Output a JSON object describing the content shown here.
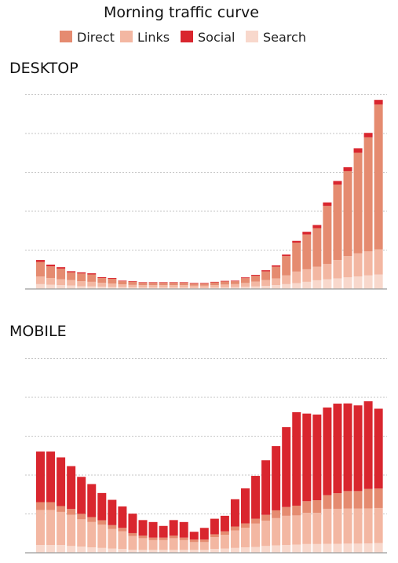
{
  "chart_data": {
    "type": "bar",
    "stacked": true,
    "title": "Morning traffic curve",
    "legend": {
      "position": "top-center",
      "entries": [
        "Direct",
        "Links",
        "Social",
        "Search"
      ]
    },
    "colors": {
      "Direct": "#e58b70",
      "Links": "#f3b7a2",
      "Social": "#d9262e",
      "Search": "#f8d8cc",
      "grid": "#b4b4b4",
      "baseline": "#9a9a9a"
    },
    "grid": true,
    "yaxis_labels": false,
    "xaxis_labels": false,
    "ylim": [
      0,
      100
    ],
    "stack_order": [
      "Search",
      "Links",
      "Direct",
      "Social"
    ],
    "panels": [
      {
        "title": "DESKTOP",
        "series": [
          {
            "name": "Search",
            "values": [
              2.5,
              2.2,
              2,
              1.8,
              1.4,
              1.3,
              1.2,
              1,
              0.9,
              0.8,
              0.7,
              0.7,
              0.7,
              0.7,
              0.7,
              0.6,
              0.6,
              0.7,
              0.8,
              0.9,
              1.1,
              1.3,
              1.6,
              2,
              2.5,
              3,
              3.7,
              4.5,
              5,
              5.5,
              6,
              6.5,
              7,
              7.5
            ]
          },
          {
            "name": "Links",
            "values": [
              4,
              3.5,
              3,
              2.8,
              2.6,
              2.4,
              2,
              1.8,
              1.5,
              1.3,
              1.3,
              1.3,
              1.3,
              1.3,
              1.3,
              1.1,
              1.1,
              1.3,
              1.5,
              1.6,
              2,
              2.5,
              3,
              3.5,
              4.5,
              6,
              6.5,
              7,
              8,
              9.5,
              11,
              12,
              12.5,
              13
            ]
          },
          {
            "name": "Direct",
            "values": [
              7.5,
              6,
              5.5,
              4,
              4,
              3.8,
              2.5,
              2.5,
              1.6,
              1.7,
              1.2,
              1.2,
              1.2,
              1.2,
              1.2,
              1.1,
              1.1,
              1.4,
              1.6,
              1.5,
              2.5,
              3,
              4.5,
              6,
              10,
              15,
              18,
              20,
              30,
              39,
              44,
              52,
              59,
              75
            ]
          },
          {
            "name": "Social",
            "values": [
              1,
              0.9,
              0.8,
              0.6,
              0.6,
              0.6,
              0.4,
              0.4,
              0.3,
              0.3,
              0.3,
              0.3,
              0.3,
              0.3,
              0.3,
              0.3,
              0.3,
              0.3,
              0.3,
              0.3,
              0.4,
              0.5,
              0.6,
              0.7,
              0.8,
              0.9,
              1.4,
              1.6,
              1.8,
              1.9,
              2,
              2.3,
              2.3,
              2.4
            ]
          }
        ]
      },
      {
        "title": "MOBILE",
        "series": [
          {
            "name": "Search",
            "values": [
              4,
              4,
              4,
              3.5,
              3.2,
              2.8,
              2.5,
              2.2,
              2,
              1.6,
              1.5,
              1.5,
              1.5,
              1.5,
              1.5,
              1.5,
              1.5,
              2,
              2.2,
              2.5,
              2.8,
              3,
              3.5,
              3.8,
              4,
              4.2,
              4.5,
              4.5,
              4.6,
              4.6,
              4.7,
              4.7,
              4.8,
              5
            ]
          },
          {
            "name": "Links",
            "values": [
              18,
              18,
              17,
              16,
              14,
              13,
              12,
              10,
              9,
              7,
              6,
              5,
              5,
              6,
              5,
              4,
              4,
              6,
              7,
              9,
              10,
              12,
              13,
              14,
              15,
              15,
              16,
              16,
              18,
              18,
              18,
              18,
              18,
              18
            ]
          },
          {
            "name": "Direct",
            "values": [
              4,
              4,
              3,
              3,
              2.8,
              2.5,
              2.2,
              2,
              1.8,
              1.5,
              1.3,
              1.3,
              1.3,
              1.3,
              1.3,
              1.3,
              1.3,
              1.5,
              1.8,
              2,
              2.3,
              2.5,
              3,
              4,
              4.5,
              5,
              6,
              6.5,
              7,
              8,
              9,
              9,
              10,
              10
            ]
          },
          {
            "name": "Social",
            "values": [
              26,
              26,
              25,
              22,
              19,
              17,
              14,
              13,
              11,
              10,
              8,
              8,
              6,
              8,
              8,
              4,
              6,
              8,
              8,
              14,
              18,
              22,
              28,
              33,
              41,
              48,
              45,
              44,
              45,
              46,
              45,
              44,
              45,
              41
            ]
          }
        ]
      }
    ]
  }
}
